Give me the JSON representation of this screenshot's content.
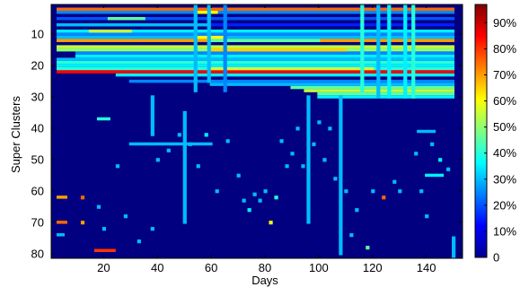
{
  "chart_data": {
    "type": "heatmap",
    "xlabel": "Days",
    "ylabel": "Super Clusters",
    "xlim": [
      1,
      153
    ],
    "ylim": [
      1,
      81
    ],
    "x_ticks": [
      20,
      40,
      60,
      80,
      100,
      120,
      140
    ],
    "y_ticks": [
      10,
      20,
      30,
      40,
      50,
      60,
      70,
      80
    ],
    "colorbar": {
      "range": [
        0,
        97
      ],
      "tick_values": [
        0,
        10,
        20,
        30,
        40,
        50,
        60,
        70,
        80,
        90
      ],
      "tick_labels": [
        "0",
        "10%",
        "20%",
        "30%",
        "40%",
        "50%",
        "60%",
        "70%",
        "80%",
        "90%"
      ],
      "colormap": "jet"
    },
    "background_value": 0,
    "rows": [
      {
        "cluster": 2,
        "days": [
          [
            3,
            150,
            75
          ]
        ]
      },
      {
        "cluster": 3,
        "days": [
          [
            3,
            150,
            25
          ],
          [
            55,
            62,
            60
          ]
        ]
      },
      {
        "cluster": 5,
        "days": [
          [
            3,
            150,
            20
          ],
          [
            22,
            35,
            45
          ]
        ]
      },
      {
        "cluster": 7,
        "days": [
          [
            3,
            60,
            30
          ],
          [
            60,
            150,
            15
          ]
        ]
      },
      {
        "cluster": 9,
        "days": [
          [
            3,
            150,
            35
          ],
          [
            15,
            30,
            55
          ]
        ]
      },
      {
        "cluster": 10,
        "days": [
          [
            3,
            150,
            25
          ]
        ]
      },
      {
        "cluster": 11,
        "days": [
          [
            3,
            150,
            30
          ],
          [
            55,
            65,
            60
          ]
        ]
      },
      {
        "cluster": 12,
        "days": [
          [
            3,
            150,
            70
          ],
          [
            60,
            100,
            45
          ]
        ]
      },
      {
        "cluster": 14,
        "days": [
          [
            3,
            150,
            55
          ]
        ]
      },
      {
        "cluster": 15,
        "days": [
          [
            3,
            150,
            50
          ],
          [
            60,
            110,
            65
          ]
        ]
      },
      {
        "cluster": 16,
        "days": [
          [
            10,
            150,
            25
          ]
        ]
      },
      {
        "cluster": 17,
        "days": [
          [
            10,
            150,
            35
          ]
        ]
      },
      {
        "cluster": 18,
        "days": [
          [
            3,
            150,
            30
          ]
        ]
      },
      {
        "cluster": 19,
        "days": [
          [
            3,
            150,
            40
          ]
        ]
      },
      {
        "cluster": 20,
        "days": [
          [
            3,
            150,
            35
          ]
        ]
      },
      {
        "cluster": 21,
        "days": [
          [
            3,
            150,
            40
          ],
          [
            60,
            120,
            55
          ]
        ]
      },
      {
        "cluster": 22,
        "days": [
          [
            3,
            150,
            85
          ]
        ]
      },
      {
        "cluster": 23,
        "days": [
          [
            25,
            150,
            35
          ]
        ]
      },
      {
        "cluster": 25,
        "days": [
          [
            30,
            150,
            25
          ]
        ]
      },
      {
        "cluster": 26,
        "days": [
          [
            60,
            150,
            30
          ]
        ]
      },
      {
        "cluster": 27,
        "days": [
          [
            90,
            150,
            45
          ]
        ]
      },
      {
        "cluster": 28,
        "days": [
          [
            95,
            150,
            55
          ]
        ]
      },
      {
        "cluster": 29,
        "days": [
          [
            100,
            150,
            45
          ]
        ]
      },
      {
        "cluster": 30,
        "days": [
          [
            100,
            150,
            35
          ]
        ]
      },
      {
        "cluster": 37,
        "days": [
          [
            18,
            22,
            40
          ]
        ]
      },
      {
        "cluster": 41,
        "days": [
          [
            137,
            143,
            30
          ]
        ]
      },
      {
        "cluster": 45,
        "days": [
          [
            30,
            60,
            30
          ]
        ]
      },
      {
        "cluster": 55,
        "days": [
          [
            140,
            146,
            35
          ]
        ]
      },
      {
        "cluster": 62,
        "days": [
          [
            3,
            6,
            70
          ]
        ]
      },
      {
        "cluster": 70,
        "days": [
          [
            3,
            6,
            75
          ]
        ]
      },
      {
        "cluster": 74,
        "days": [
          [
            3,
            5,
            30
          ]
        ]
      },
      {
        "cluster": 79,
        "days": [
          [
            17,
            24,
            80
          ]
        ]
      }
    ],
    "columns": [
      {
        "day": 54,
        "clusters": [
          [
            1,
            28,
            30
          ]
        ]
      },
      {
        "day": 59,
        "clusters": [
          [
            1,
            25,
            30
          ]
        ]
      },
      {
        "day": 65,
        "clusters": [
          [
            1,
            28,
            25
          ]
        ]
      },
      {
        "day": 116,
        "clusters": [
          [
            1,
            28,
            40
          ]
        ]
      },
      {
        "day": 122,
        "clusters": [
          [
            1,
            30,
            30
          ]
        ]
      },
      {
        "day": 126,
        "clusters": [
          [
            1,
            30,
            35
          ]
        ]
      },
      {
        "day": 132,
        "clusters": [
          [
            1,
            30,
            35
          ]
        ]
      },
      {
        "day": 135,
        "clusters": [
          [
            1,
            30,
            40
          ]
        ]
      },
      {
        "day": 38,
        "clusters": [
          [
            30,
            42,
            30
          ]
        ]
      },
      {
        "day": 50,
        "clusters": [
          [
            35,
            70,
            30
          ]
        ]
      },
      {
        "day": 96,
        "clusters": [
          [
            30,
            70,
            30
          ]
        ]
      },
      {
        "day": 108,
        "clusters": [
          [
            30,
            80,
            30
          ]
        ]
      },
      {
        "day": 150,
        "clusters": [
          [
            75,
            81,
            30
          ]
        ]
      }
    ],
    "spots": [
      [
        12,
        62,
        75
      ],
      [
        12,
        70,
        70
      ],
      [
        18,
        65,
        30
      ],
      [
        20,
        72,
        30
      ],
      [
        25,
        52,
        30
      ],
      [
        28,
        68,
        30
      ],
      [
        33,
        76,
        30
      ],
      [
        38,
        72,
        30
      ],
      [
        40,
        50,
        30
      ],
      [
        44,
        47,
        30
      ],
      [
        48,
        42,
        30
      ],
      [
        52,
        45,
        30
      ],
      [
        55,
        52,
        30
      ],
      [
        58,
        42,
        35
      ],
      [
        62,
        60,
        30
      ],
      [
        66,
        44,
        30
      ],
      [
        70,
        55,
        30
      ],
      [
        72,
        63,
        30
      ],
      [
        74,
        66,
        35
      ],
      [
        76,
        61,
        30
      ],
      [
        78,
        63,
        30
      ],
      [
        80,
        60,
        30
      ],
      [
        82,
        70,
        60
      ],
      [
        84,
        62,
        40
      ],
      [
        86,
        44,
        30
      ],
      [
        88,
        52,
        30
      ],
      [
        90,
        48,
        30
      ],
      [
        92,
        40,
        30
      ],
      [
        94,
        52,
        30
      ],
      [
        98,
        45,
        30
      ],
      [
        100,
        38,
        30
      ],
      [
        102,
        50,
        30
      ],
      [
        104,
        40,
        30
      ],
      [
        106,
        56,
        30
      ],
      [
        110,
        60,
        30
      ],
      [
        112,
        74,
        30
      ],
      [
        114,
        66,
        30
      ],
      [
        118,
        78,
        45
      ],
      [
        120,
        60,
        30
      ],
      [
        124,
        62,
        75
      ],
      [
        128,
        57,
        30
      ],
      [
        130,
        60,
        30
      ],
      [
        136,
        48,
        30
      ],
      [
        138,
        60,
        30
      ],
      [
        140,
        68,
        30
      ],
      [
        142,
        45,
        30
      ],
      [
        145,
        50,
        35
      ],
      [
        148,
        53,
        30
      ]
    ]
  }
}
